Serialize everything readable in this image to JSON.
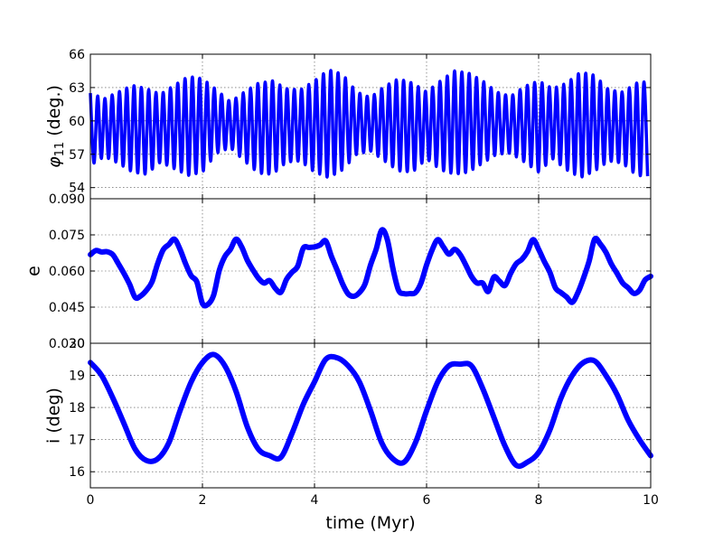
{
  "chart_data": [
    {
      "type": "line",
      "ylabel_symbol": "φ",
      "ylabel_subscript": "11",
      "ylabel_unit": " (deg.)",
      "xlim": [
        0,
        10
      ],
      "ylim": [
        53,
        66
      ],
      "yticks": [
        "54",
        "57",
        "60",
        "63",
        "66"
      ],
      "grid": true,
      "color": "#0000ff",
      "series": [
        {
          "kind": "oscillation-band",
          "center": 59.5,
          "oscillation_period": 0.13,
          "x": [
            0,
            0.25,
            0.5,
            0.75,
            1.0,
            1.25,
            1.5,
            1.75,
            2.0,
            2.25,
            2.5,
            2.75,
            3.0,
            3.25,
            3.5,
            3.75,
            4.0,
            4.25,
            4.5,
            4.75,
            5.0,
            5.25,
            5.5,
            5.75,
            6.0,
            6.25,
            6.5,
            6.75,
            7.0,
            7.25,
            7.5,
            7.75,
            8.0,
            8.25,
            8.5,
            8.75,
            9.0,
            9.25,
            9.5,
            9.75,
            10.0
          ],
          "upper": [
            62.5,
            62.0,
            62.6,
            63.2,
            62.9,
            62.4,
            63.2,
            64.0,
            63.8,
            62.8,
            61.7,
            62.6,
            63.4,
            63.6,
            62.9,
            62.8,
            63.6,
            64.6,
            64.2,
            62.6,
            62.1,
            63.1,
            63.8,
            63.4,
            62.6,
            63.6,
            64.5,
            64.3,
            63.6,
            62.6,
            62.2,
            63.1,
            63.6,
            62.9,
            63.4,
            64.4,
            64.1,
            62.8,
            62.6,
            63.4,
            63.6
          ],
          "lower": [
            56.0,
            56.8,
            56.2,
            55.4,
            55.2,
            56.3,
            55.7,
            55.1,
            55.4,
            57.1,
            57.6,
            56.4,
            55.3,
            55.2,
            56.3,
            56.4,
            55.4,
            54.9,
            55.6,
            57.0,
            57.3,
            56.4,
            55.5,
            55.4,
            56.6,
            55.6,
            55.2,
            55.4,
            56.2,
            57.0,
            57.1,
            56.3,
            55.4,
            56.6,
            55.6,
            54.9,
            55.5,
            56.4,
            56.2,
            55.1,
            55.0
          ]
        }
      ]
    },
    {
      "type": "line",
      "ylabel": "e",
      "xlim": [
        0,
        10
      ],
      "ylim": [
        0.03,
        0.09
      ],
      "yticks": [
        "0.045",
        "0.060",
        "0.075",
        "0.090"
      ],
      "yticks_overlap": "0.030",
      "grid": true,
      "color": "#0000ff",
      "series": [
        {
          "x": [
            0,
            0.1,
            0.2,
            0.3,
            0.4,
            0.5,
            0.6,
            0.7,
            0.8,
            0.9,
            1.0,
            1.1,
            1.2,
            1.3,
            1.4,
            1.5,
            1.6,
            1.7,
            1.8,
            1.9,
            2.0,
            2.1,
            2.2,
            2.3,
            2.4,
            2.5,
            2.6,
            2.7,
            2.8,
            2.9,
            3.0,
            3.1,
            3.2,
            3.3,
            3.4,
            3.5,
            3.6,
            3.7,
            3.8,
            3.9,
            4.0,
            4.1,
            4.2,
            4.3,
            4.4,
            4.5,
            4.6,
            4.7,
            4.8,
            4.9,
            5.0,
            5.1,
            5.2,
            5.3,
            5.4,
            5.5,
            5.6,
            5.7,
            5.8,
            5.9,
            6.0,
            6.1,
            6.2,
            6.3,
            6.4,
            6.5,
            6.6,
            6.7,
            6.8,
            6.9,
            7.0,
            7.1,
            7.2,
            7.3,
            7.4,
            7.5,
            7.6,
            7.7,
            7.8,
            7.9,
            8.0,
            8.1,
            8.2,
            8.3,
            8.4,
            8.5,
            8.6,
            8.7,
            8.8,
            8.9,
            9.0,
            9.1,
            9.2,
            9.3,
            9.4,
            9.5,
            9.6,
            9.7,
            9.8,
            9.9,
            10.0
          ],
          "y": [
            0.0668,
            0.0685,
            0.0679,
            0.068,
            0.0668,
            0.063,
            0.059,
            0.0545,
            0.049,
            0.0497,
            0.052,
            0.0555,
            0.063,
            0.0688,
            0.071,
            0.0732,
            0.069,
            0.063,
            0.058,
            0.0555,
            0.0465,
            0.0462,
            0.05,
            0.0602,
            0.066,
            0.069,
            0.0732,
            0.07,
            0.0645,
            0.0605,
            0.057,
            0.055,
            0.056,
            0.0528,
            0.0512,
            0.0565,
            0.0595,
            0.062,
            0.0695,
            0.0698,
            0.07,
            0.0708,
            0.0725,
            0.0662,
            0.0606,
            0.0547,
            0.0505,
            0.0495,
            0.051,
            0.0545,
            0.0625,
            0.069,
            0.077,
            0.073,
            0.061,
            0.052,
            0.0506,
            0.0506,
            0.051,
            0.055,
            0.0625,
            0.0688,
            0.073,
            0.07,
            0.067,
            0.069,
            0.0668,
            0.0625,
            0.0578,
            0.055,
            0.055,
            0.0515,
            0.0575,
            0.0558,
            0.054,
            0.059,
            0.063,
            0.0648,
            0.068,
            0.073,
            0.069,
            0.064,
            0.0595,
            0.053,
            0.051,
            0.0492,
            0.047,
            0.051,
            0.057,
            0.064,
            0.0732,
            0.0712,
            0.0678,
            0.0628,
            0.059,
            0.055,
            0.053,
            0.0507,
            0.052,
            0.0563,
            0.0578
          ]
        }
      ]
    },
    {
      "type": "line",
      "ylabel": "i (deg)",
      "xlabel": "time (Myr)",
      "xlim": [
        0,
        10
      ],
      "ylim": [
        15.5,
        20
      ],
      "yticks": [
        "16",
        "17",
        "18",
        "19"
      ],
      "yticks_overlap": "20",
      "xticks": [
        "0",
        "2",
        "4",
        "6",
        "8",
        "10"
      ],
      "grid": true,
      "color": "#0000ff",
      "series": [
        {
          "x": [
            0,
            0.2,
            0.4,
            0.6,
            0.8,
            1.0,
            1.2,
            1.4,
            1.6,
            1.8,
            2.0,
            2.2,
            2.4,
            2.6,
            2.8,
            3.0,
            3.2,
            3.4,
            3.6,
            3.8,
            4.0,
            4.2,
            4.4,
            4.6,
            4.8,
            5.0,
            5.2,
            5.4,
            5.6,
            5.8,
            6.0,
            6.2,
            6.4,
            6.6,
            6.8,
            7.0,
            7.2,
            7.4,
            7.6,
            7.8,
            8.0,
            8.2,
            8.4,
            8.6,
            8.8,
            9.0,
            9.2,
            9.4,
            9.6,
            9.8,
            10.0
          ],
          "y": [
            19.4,
            19.0,
            18.3,
            17.5,
            16.7,
            16.35,
            16.4,
            16.9,
            17.9,
            18.8,
            19.4,
            19.65,
            19.3,
            18.5,
            17.4,
            16.7,
            16.5,
            16.45,
            17.2,
            18.1,
            18.8,
            19.5,
            19.55,
            19.3,
            18.8,
            17.9,
            16.9,
            16.4,
            16.3,
            16.9,
            17.9,
            18.8,
            19.3,
            19.35,
            19.3,
            18.6,
            17.7,
            16.8,
            16.2,
            16.3,
            16.6,
            17.3,
            18.3,
            19.0,
            19.4,
            19.45,
            19.0,
            18.4,
            17.6,
            17.0,
            16.5
          ]
        }
      ]
    }
  ]
}
